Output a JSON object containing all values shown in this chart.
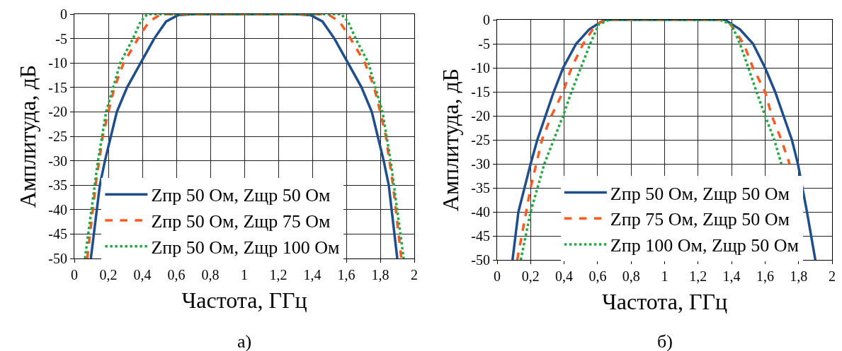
{
  "chart_data": [
    {
      "type": "line",
      "xlabel": "Частота, ГГц",
      "ylabel": "Амплитуда, дБ",
      "annotations": [
        "а)"
      ],
      "xlim": [
        0,
        2
      ],
      "ylim": [
        -50,
        0
      ],
      "xticks": [
        0,
        {
          "value": 0.2,
          "label": "0,2"
        },
        {
          "value": 0.4,
          "label": "0,4"
        },
        {
          "value": 0.6,
          "label": "0,6"
        },
        {
          "value": 0.8,
          "label": "0,8"
        },
        1,
        {
          "value": 1.2,
          "label": "1,2"
        },
        {
          "value": 1.4,
          "label": "1,4"
        },
        {
          "value": 1.6,
          "label": "1,6"
        },
        {
          "value": 1.8,
          "label": "1,8"
        },
        2
      ],
      "yticks": [
        0,
        -5,
        -10,
        -15,
        -20,
        -25,
        -30,
        -35,
        -40,
        -45,
        -50
      ],
      "grid": true,
      "legend": "bottom",
      "marker": "none",
      "series": [
        {
          "name": "Zпр 50 Ом, Zщр 50 Ом",
          "color": "#1f4e8c",
          "line_style": "solid",
          "x": [
            0.097,
            0.15,
            0.18,
            0.25,
            0.31,
            0.39,
            0.47,
            0.54,
            0.61,
            0.7,
            1.3,
            1.39,
            1.46,
            1.53,
            1.61,
            1.69,
            1.75,
            1.82,
            1.85,
            1.9
          ],
          "values": [
            -50,
            -35,
            -30,
            -20,
            -15,
            -10,
            -5,
            -1.5,
            -0.2,
            0,
            0,
            -0.2,
            -1.5,
            -5,
            -10,
            -15,
            -20,
            -30,
            -35,
            -50
          ]
        },
        {
          "name": "Zпр 50 Ом, Zщр 75 Ом",
          "color": "#ff5a1f",
          "line_style": "dashed",
          "x": [
            0.076,
            0.125,
            0.167,
            0.2,
            0.236,
            0.29,
            0.375,
            0.44,
            0.51,
            1.49,
            1.56,
            1.625,
            1.71,
            1.764,
            1.8,
            1.833,
            1.875,
            1.924
          ],
          "values": [
            -50,
            -35,
            -25,
            -20,
            -15,
            -10,
            -5,
            -1.5,
            0,
            0,
            -1.5,
            -5,
            -10,
            -15,
            -20,
            -25,
            -35,
            -50
          ]
        },
        {
          "name": "Zпр 50 Ом, Zщр 100 Ом",
          "color": "#22a845",
          "line_style": "dotted",
          "x": [
            0.0625,
            0.139,
            0.187,
            0.27,
            0.345,
            0.39,
            0.43,
            1.57,
            1.61,
            1.655,
            1.73,
            1.813,
            1.861,
            1.9375
          ],
          "values": [
            -50,
            -30,
            -20,
            -10,
            -5,
            -1.5,
            0,
            0,
            -1.5,
            -5,
            -10,
            -20,
            -30,
            -50
          ]
        }
      ]
    },
    {
      "type": "line",
      "xlabel": "Частота, ГГц",
      "ylabel": "Амплитуда, дБ",
      "annotations": [
        "б)"
      ],
      "xlim": [
        0,
        2
      ],
      "ylim": [
        -50,
        0
      ],
      "xticks": [
        0,
        {
          "value": 0.2,
          "label": "0,2"
        },
        {
          "value": 0.4,
          "label": "0,4"
        },
        {
          "value": 0.6,
          "label": "0,6"
        },
        {
          "value": 0.8,
          "label": "0,8"
        },
        1,
        {
          "value": 1.2,
          "label": "1,2"
        },
        {
          "value": 1.4,
          "label": "1,4"
        },
        {
          "value": 1.6,
          "label": "1,6"
        },
        {
          "value": 1.8,
          "label": "1,8"
        },
        2
      ],
      "yticks": [
        0,
        -5,
        -10,
        -15,
        -20,
        -25,
        -30,
        -35,
        -40,
        -45,
        -50
      ],
      "grid": true,
      "legend": "bottom",
      "marker": "none",
      "series": [
        {
          "name": "Zпр 50 Ом, Zщр 50 Ом",
          "color": "#1f4e8c",
          "line_style": "solid",
          "x": [
            0.092,
            0.127,
            0.2,
            0.24,
            0.289,
            0.338,
            0.394,
            0.472,
            0.55,
            0.64,
            1.36,
            1.45,
            1.528,
            1.6,
            1.66,
            1.71,
            1.76,
            1.796,
            1.85,
            1.9
          ],
          "values": [
            -50,
            -40,
            -30,
            -25,
            -20,
            -15,
            -10,
            -5,
            -2,
            0,
            0,
            -2,
            -5,
            -10,
            -15,
            -20,
            -25,
            -30,
            -40,
            -50
          ]
        },
        {
          "name": "Zпр 75 Ом, Zщр 50 Ом",
          "color": "#ff5a1f",
          "line_style": "dashed",
          "x": [
            0.12,
            0.2,
            0.268,
            0.324,
            0.394,
            0.444,
            0.514,
            0.59,
            0.655,
            1.345,
            1.394,
            1.472,
            1.528,
            1.6,
            1.64,
            1.697,
            1.746
          ],
          "values": [
            -50,
            -35,
            -25,
            -20,
            -15,
            -10,
            -5,
            -1,
            0,
            0,
            -1,
            -5,
            -10,
            -15,
            -20,
            -25,
            -30
          ]
        },
        {
          "name": "Zпр 100 Ом, Zщр 50 Ом",
          "color": "#22a845",
          "line_style": "dotted",
          "x": [
            0.141,
            0.2,
            0.282,
            0.394,
            0.444,
            0.5,
            0.556,
            0.606,
            0.67,
            1.33,
            1.4,
            1.45,
            1.5,
            1.549,
            1.6,
            1.655,
            1.697
          ],
          "values": [
            -50,
            -40,
            -30,
            -20,
            -15,
            -10,
            -5,
            -1,
            0,
            0,
            -1,
            -5,
            -10,
            -15,
            -20,
            -25,
            -30
          ]
        }
      ]
    }
  ]
}
